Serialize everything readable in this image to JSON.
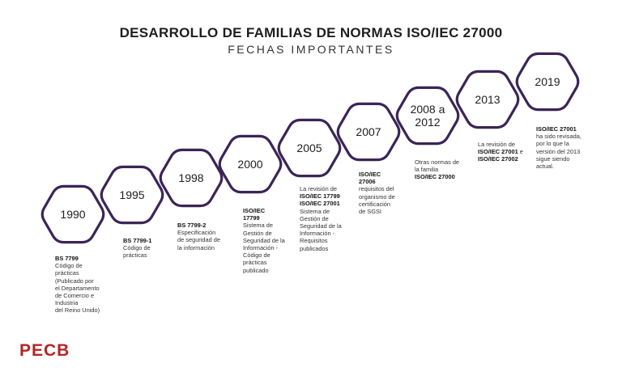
{
  "title": "DESARROLLO DE FAMILIAS DE NORMAS ISO/IEC 27000",
  "subtitle": "FECHAS IMPORTANTES",
  "colors": {
    "hex_stroke": "#3b2556",
    "logo": "#b32626"
  },
  "milestones": [
    {
      "year": "1990",
      "desc": [
        {
          "t": "BS 7799",
          "b": true
        },
        {
          "t": "Código de"
        },
        {
          "t": "prácticas"
        },
        {
          "t": "(Publicado por"
        },
        {
          "t": "el Departamento"
        },
        {
          "t": "de Comercio e"
        },
        {
          "t": "Industria"
        },
        {
          "t": "del Reino Unido)"
        }
      ]
    },
    {
      "year": "1995",
      "desc": [
        {
          "t": "BS 7799-1",
          "b": true
        },
        {
          "t": "Código de"
        },
        {
          "t": "prácticas"
        }
      ]
    },
    {
      "year": "1998",
      "desc": [
        {
          "t": "BS 7799-2",
          "b": true
        },
        {
          "t": "Especificación"
        },
        {
          "t": "de seguridad de"
        },
        {
          "t": "la información"
        }
      ]
    },
    {
      "year": "2000",
      "desc": [
        {
          "t": "ISO/IEC",
          "b": true
        },
        {
          "t": "17799",
          "b": true
        },
        {
          "t": "Sistema de"
        },
        {
          "t": "Gestión de"
        },
        {
          "t": "Seguridad de la"
        },
        {
          "t": "Información -"
        },
        {
          "t": "Código de"
        },
        {
          "t": "prácticas"
        },
        {
          "t": "publicado"
        }
      ]
    },
    {
      "year": "2005",
      "desc": [
        {
          "t": "La revisión de"
        },
        {
          "t": "ISO/IEC 17799",
          "b": true
        },
        {
          "t": "ISO/IEC 27001",
          "b": true
        },
        {
          "t": "Sistema de"
        },
        {
          "t": "Gestión de"
        },
        {
          "t": "Seguridad de la"
        },
        {
          "t": "Información -"
        },
        {
          "t": "Requisitos"
        },
        {
          "t": "publicados"
        }
      ]
    },
    {
      "year": "2007",
      "desc": [
        {
          "t": "ISO/IEC",
          "b": true
        },
        {
          "t": "27006",
          "b": true
        },
        {
          "t": "requisitos del"
        },
        {
          "t": "organismo de"
        },
        {
          "t": "certificación"
        },
        {
          "t": "de SGSI"
        }
      ]
    },
    {
      "year": "2008 a 2012",
      "desc": [
        {
          "t": "Otras normas de"
        },
        {
          "t": "la familia"
        },
        {
          "t": "ISO/IEC 27000",
          "b": true
        }
      ]
    },
    {
      "year": "2013",
      "desc": [
        {
          "t": "La revisión de"
        },
        {
          "t": "ISO/IEC 27001 e",
          "bpart": "ISO/IEC 27001",
          "rest": " e"
        },
        {
          "t": "ISO/IEC 27002",
          "b": true
        }
      ]
    },
    {
      "year": "2019",
      "desc": [
        {
          "t": "ISO/IEC 27001",
          "b": true
        },
        {
          "t": "ha sido revisada,"
        },
        {
          "t": "por lo que la"
        },
        {
          "t": "versión del 2013"
        },
        {
          "t": "sigue siendo"
        },
        {
          "t": "actual."
        }
      ]
    }
  ],
  "logo": "PECB"
}
